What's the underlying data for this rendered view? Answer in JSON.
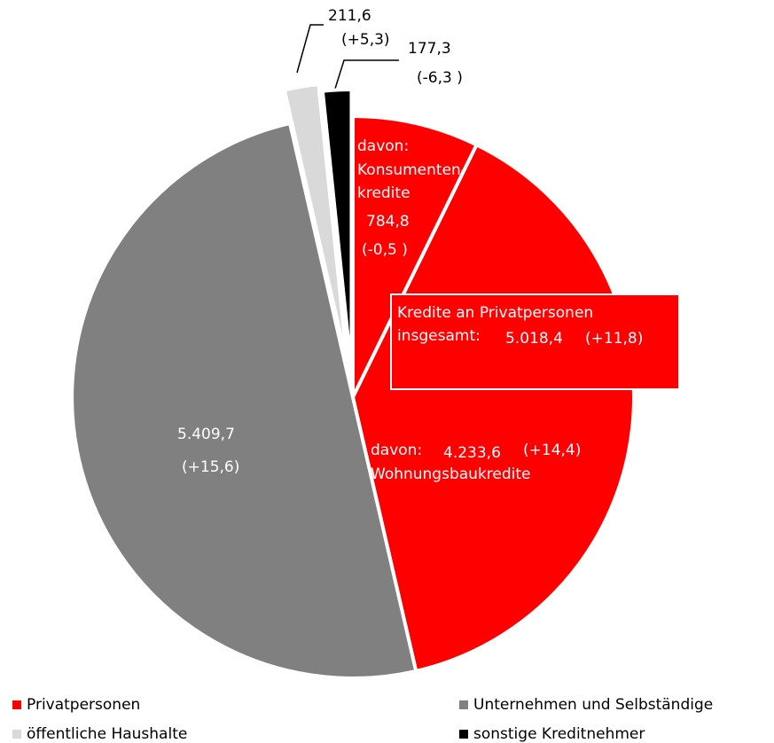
{
  "chart_data": {
    "type": "pie",
    "values": [
      784.8,
      4233.6,
      5409.7,
      211.6,
      177.3
    ],
    "value_labels": [
      "784,8",
      "4.233,6",
      "5.409,7",
      "211,6",
      "177,3"
    ],
    "changes": [
      -0.5,
      14.4,
      15.6,
      5.3,
      -6.3
    ],
    "change_labels": [
      "(-0,5 )",
      "(+14,4)",
      "(+15,6)",
      "(+5,3)",
      "(-6,3 )"
    ],
    "colors": [
      "#ff0000",
      "#ff0000",
      "#808080",
      "#d9d9d9",
      "#000000"
    ],
    "annotations": [
      [
        "davon:",
        "Konsumenten-",
        "kredite"
      ],
      [
        "davon:",
        "Wohnungsbaukredite"
      ]
    ],
    "total_text": [
      "Kredite an Privatpersonen",
      "insgesamt:"
    ],
    "total": 5018.4,
    "total_label": "5.018,4",
    "total_change": 11.8,
    "total_change_label": "(+11,8)",
    "legend": [
      {
        "name": "Privatpersonen",
        "color": "#ff0000"
      },
      {
        "name": "Unternehmen und Selbständige",
        "color": "#808080"
      },
      {
        "name": "öffentliche Haushalte",
        "color": "#d9d9d9"
      },
      {
        "name": "sonstige Kreditnehmer",
        "color": "#000000"
      }
    ]
  }
}
